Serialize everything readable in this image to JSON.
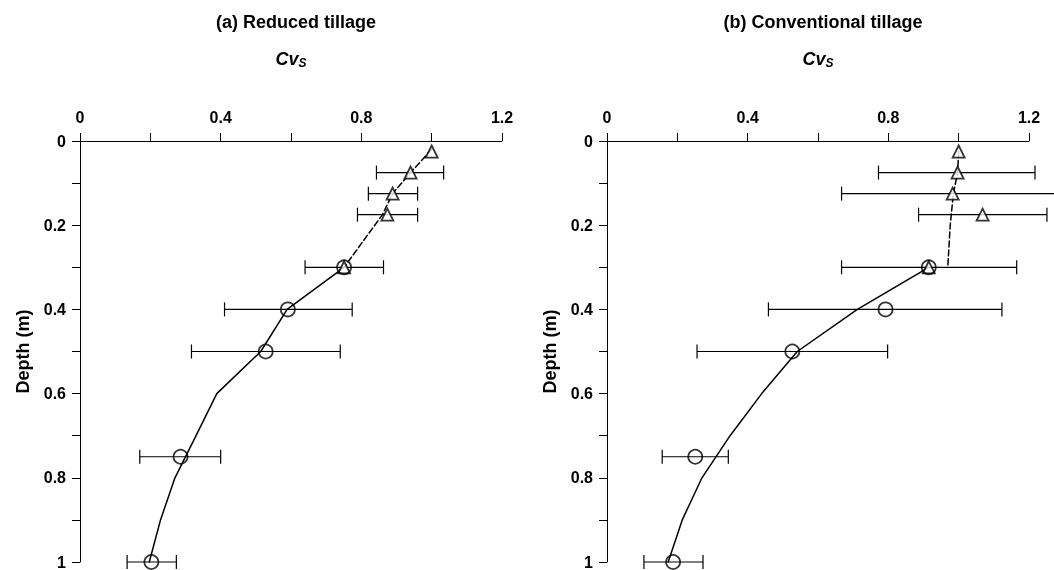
{
  "chart_data": [
    {
      "type": "scatter",
      "title": "(a) Reduced tillage",
      "xlabel": "Cv$_{S}$",
      "ylabel": "Depth (m)",
      "xlim": [
        0,
        1.2
      ],
      "xticks": [
        0,
        {
          "value": 0.2,
          "label": null
        },
        0.4,
        {
          "value": 0.6,
          "label": null
        },
        0.8,
        {
          "value": 1.0,
          "label": null
        },
        1.2
      ],
      "ylim": [
        1,
        0
      ],
      "yticks": [
        0,
        {
          "value": 0.1,
          "label": null
        },
        0.2,
        {
          "value": 0.3,
          "label": null
        },
        0.4,
        {
          "value": 0.5,
          "label": null
        },
        0.6,
        {
          "value": 0.7,
          "label": null
        },
        0.8,
        {
          "value": 0.9,
          "label": null
        },
        1
      ],
      "grid": false,
      "series": [
        {
          "type": "scatter",
          "marker": "triangle",
          "color": "#000000",
          "x": [
            1.0,
            0.94,
            0.889,
            0.874,
            0.751
          ],
          "values": [
            0.025,
            0.075,
            0.125,
            0.175,
            0.3
          ],
          "xerrors": [
            null,
            [
              0.843,
              1.034
            ],
            [
              0.82,
              0.96
            ],
            [
              0.789,
              0.96
            ],
            null
          ]
        },
        {
          "type": "scatter",
          "color": "#000000",
          "x": [
            0.751,
            0.591,
            0.528,
            0.286,
            0.203
          ],
          "values": [
            0.3,
            0.4,
            0.5,
            0.75,
            1.0
          ],
          "xerrors": [
            [
              0.64,
              0.863
            ],
            [
              0.411,
              0.774
            ],
            [
              0.317,
              0.74
            ],
            [
              0.17,
              0.4
            ],
            [
              0.134,
              0.274
            ]
          ]
        },
        {
          "type": "line",
          "marker": "none",
          "line_style": "dashed",
          "color": "#000000",
          "x": [
            1.0,
            0.94,
            0.889,
            0.86,
            0.751
          ],
          "values": [
            0.02,
            0.075,
            0.125,
            0.175,
            0.3
          ]
        },
        {
          "type": "line",
          "marker": "none",
          "line_style": "solid",
          "color": "#000000",
          "x": [
            0.751,
            0.589,
            0.514,
            0.389,
            0.33,
            0.27,
            0.229,
            0.197
          ],
          "values": [
            0.3,
            0.4,
            0.5,
            0.6,
            0.7,
            0.8,
            0.9,
            1.0
          ]
        }
      ]
    },
    {
      "type": "scatter",
      "title": "(b) Conventional tillage",
      "xlabel": "Cv$_{S}$",
      "ylabel": "Depth (m)",
      "xlim": [
        0,
        1.2
      ],
      "xticks": [
        0,
        {
          "value": 0.2,
          "label": null
        },
        0.4,
        {
          "value": 0.6,
          "label": null
        },
        0.8,
        {
          "value": 1.0,
          "label": null
        },
        1.2
      ],
      "ylim": [
        1,
        0
      ],
      "yticks": [
        0,
        {
          "value": 0.1,
          "label": null
        },
        0.2,
        {
          "value": 0.3,
          "label": null
        },
        0.4,
        {
          "value": 0.5,
          "label": null
        },
        0.6,
        {
          "value": 0.7,
          "label": null
        },
        0.8,
        {
          "value": 0.9,
          "label": null
        },
        1
      ],
      "grid": false,
      "series": [
        {
          "type": "scatter",
          "marker": "triangle",
          "color": "#000000",
          "x": [
            1.0,
            0.997,
            0.983,
            1.068,
            0.915
          ],
          "values": [
            0.025,
            0.075,
            0.125,
            0.175,
            0.3
          ],
          "xerrors": [
            null,
            [
              0.772,
              1.217
            ],
            [
              0.667,
              1.29
            ],
            [
              0.886,
              1.251
            ],
            null
          ]
        },
        {
          "type": "scatter",
          "color": "#000000",
          "x": [
            0.915,
            0.792,
            0.527,
            0.251,
            0.188
          ],
          "values": [
            0.3,
            0.4,
            0.5,
            0.75,
            1.0
          ],
          "xerrors": [
            [
              0.667,
              1.165
            ],
            [
              0.459,
              1.123
            ],
            [
              0.256,
              0.798
            ],
            [
              0.157,
              0.345
            ],
            [
              0.105,
              0.273
            ]
          ]
        },
        {
          "type": "line",
          "marker": "none",
          "line_style": "dashed",
          "color": "#000000",
          "x": [
            1.0,
            0.997,
            0.985,
            0.976,
            0.969
          ],
          "values": [
            0.025,
            0.075,
            0.125,
            0.2,
            0.3
          ]
        },
        {
          "type": "line",
          "marker": "none",
          "line_style": "solid",
          "color": "#000000",
          "x": [
            0.915,
            0.712,
            0.541,
            0.44,
            0.35,
            0.27,
            0.214,
            0.174
          ],
          "values": [
            0.3,
            0.4,
            0.5,
            0.6,
            0.7,
            0.8,
            0.9,
            1.0
          ]
        }
      ]
    }
  ]
}
